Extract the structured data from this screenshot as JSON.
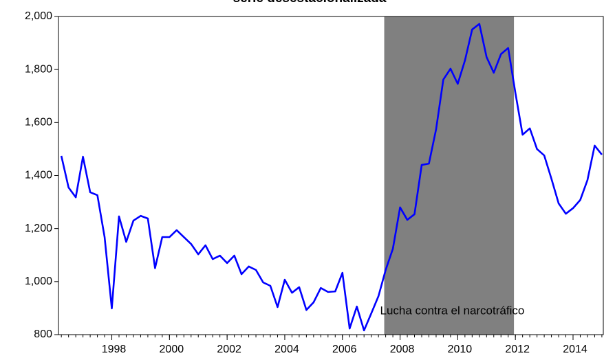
{
  "chart_data": {
    "type": "line",
    "title": "serie desestacionalizada",
    "x": [
      1996.25,
      1996.5,
      1996.75,
      1997,
      1997.25,
      1997.5,
      1997.75,
      1998,
      1998.25,
      1998.5,
      1998.75,
      1999,
      1999.25,
      1999.5,
      1999.75,
      2000,
      2000.25,
      2000.5,
      2000.75,
      2001,
      2001.25,
      2001.5,
      2001.75,
      2002,
      2002.25,
      2002.5,
      2002.75,
      2003,
      2003.25,
      2003.5,
      2003.75,
      2004,
      2004.25,
      2004.5,
      2004.75,
      2005,
      2005.25,
      2005.5,
      2005.75,
      2006,
      2006.25,
      2006.5,
      2006.75,
      2007,
      2007.25,
      2007.5,
      2007.75,
      2008,
      2008.25,
      2008.5,
      2008.75,
      2009,
      2009.25,
      2009.5,
      2009.75,
      2010,
      2010.25,
      2010.5,
      2010.75,
      2011,
      2011.25,
      2011.5,
      2011.75,
      2012,
      2012.25,
      2012.5,
      2012.75,
      2013,
      2013.25,
      2013.5,
      2013.75,
      2014,
      2014.25,
      2014.5,
      2014.75,
      2015
    ],
    "series": [
      {
        "color": "#0000ff",
        "values": [
          1474,
          1355,
          1318,
          1471,
          1337,
          1326,
          1168,
          899,
          1246,
          1150,
          1230,
          1248,
          1238,
          1051,
          1168,
          1168,
          1194,
          1168,
          1142,
          1103,
          1137,
          1085,
          1098,
          1070,
          1098,
          1028,
          1057,
          1044,
          997,
          984,
          904,
          1007,
          958,
          979,
          893,
          922,
          976,
          961,
          963,
          1033,
          823,
          906,
          816,
          880,
          945,
          1044,
          1124,
          1280,
          1233,
          1254,
          1440,
          1445,
          1575,
          1762,
          1803,
          1746,
          1834,
          1951,
          1972,
          1847,
          1788,
          1858,
          1881,
          1712,
          1554,
          1578,
          1500,
          1476,
          1388,
          1295,
          1256,
          1277,
          1308,
          1383,
          1513,
          1479
        ]
      }
    ],
    "xlim": [
      1996.15,
      2015.05
    ],
    "xticks": [
      1998,
      2000,
      2002,
      2004,
      2006,
      2008,
      2010,
      2012,
      2014
    ],
    "ylim": [
      800,
      2000
    ],
    "yticks": [
      800,
      {
        "value": 1000,
        "label": "1,000"
      },
      {
        "value": 1200,
        "label": "1,200"
      },
      {
        "value": 1400,
        "label": "1,400"
      },
      {
        "value": 1600,
        "label": "1,600"
      },
      {
        "value": 1800,
        "label": "1,800"
      },
      {
        "value": 2000,
        "label": "2,000"
      }
    ],
    "shaded_region": {
      "x": [
        2007.45,
        2011.95
      ],
      "color": "#808080",
      "label": "Lucha contra el narcotráfico"
    }
  }
}
